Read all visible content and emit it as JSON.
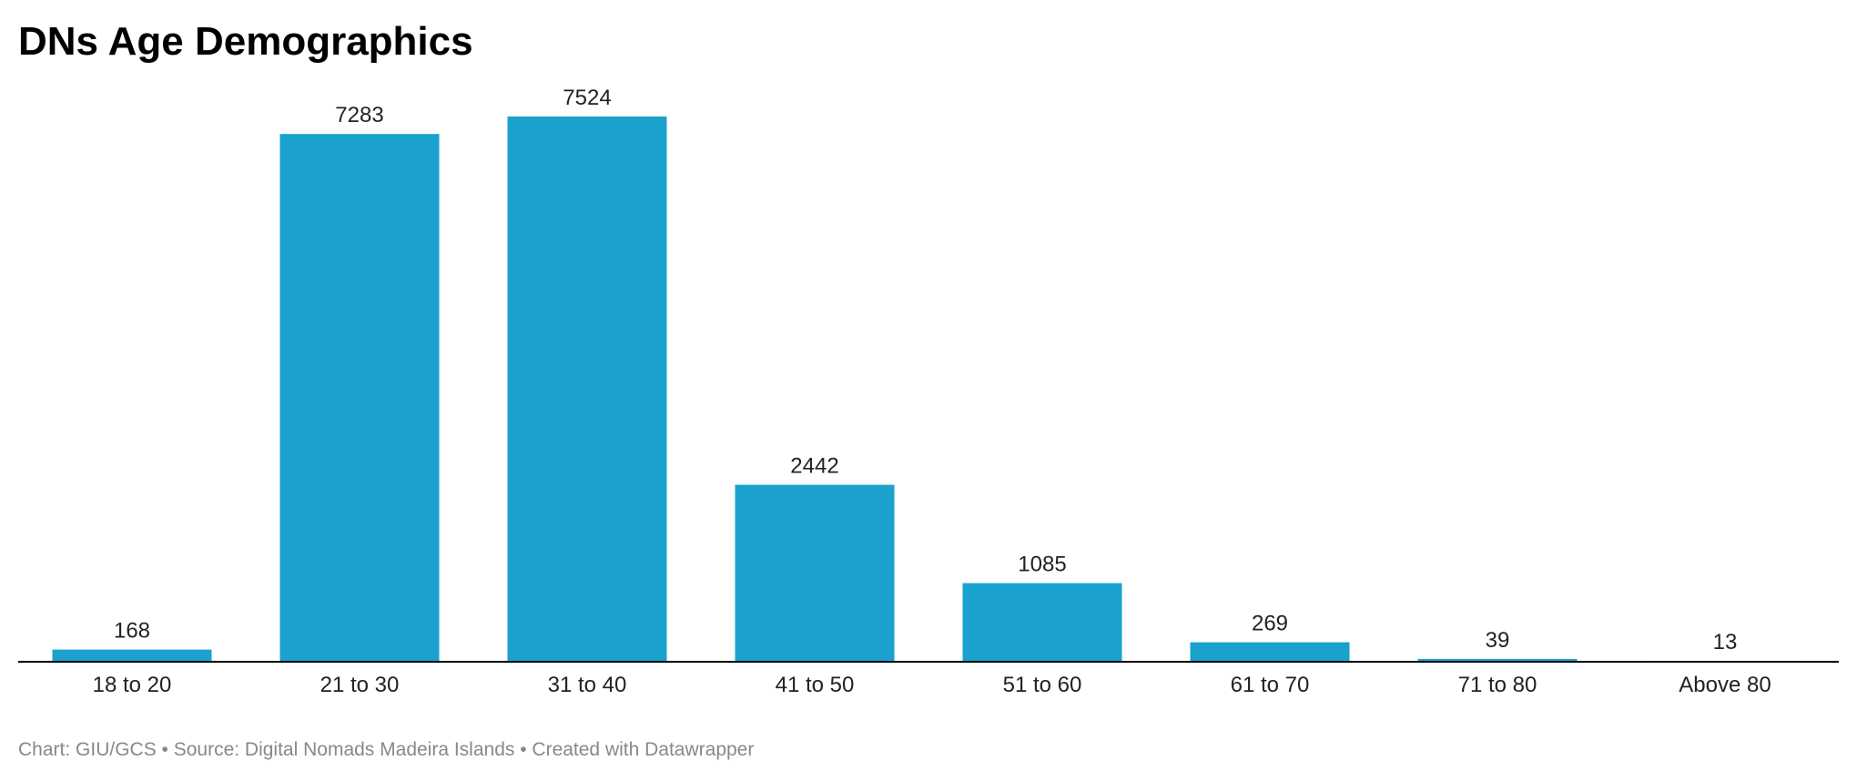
{
  "chart_data": {
    "type": "bar",
    "title": "DNs Age Demographics",
    "categories": [
      "18 to 20",
      "21 to 30",
      "31 to 40",
      "41 to 50",
      "51 to 60",
      "61 to 70",
      "71 to 80",
      "Above 80"
    ],
    "values": [
      168,
      7283,
      7524,
      2442,
      1085,
      269,
      39,
      13
    ],
    "xlabel": "",
    "ylabel": "",
    "ylim": [
      0,
      7524
    ],
    "grid": false,
    "legend": "none",
    "data_labels": true,
    "bar_color": "#1aa1ce"
  },
  "footer": {
    "credit": "Chart: GIU/GCS • Source: Digital Nomads Madeira Islands • Created with Datawrapper"
  }
}
